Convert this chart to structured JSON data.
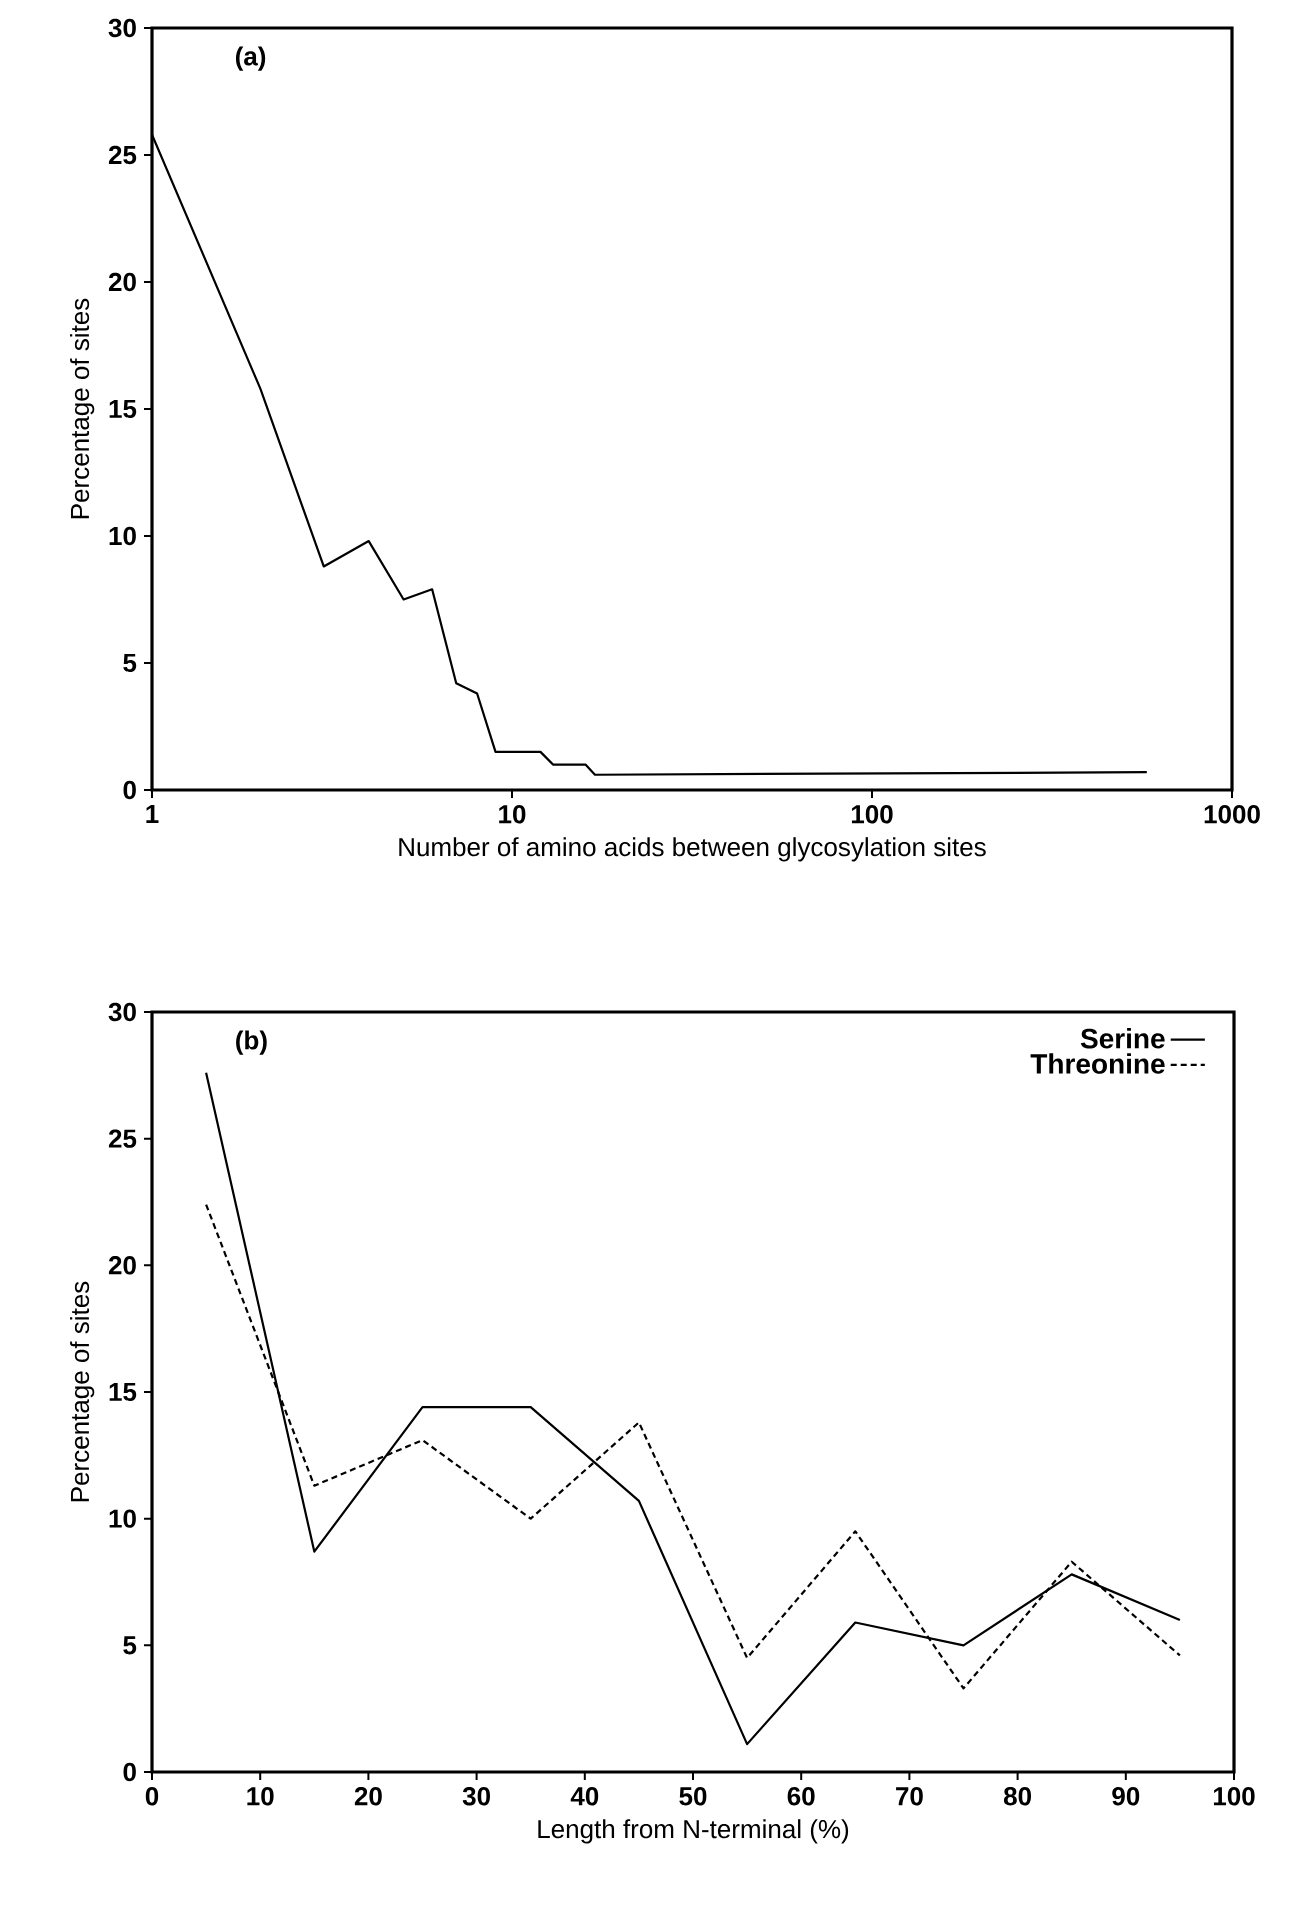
{
  "chart_data": [
    {
      "type": "line",
      "xlabel": "Number of amino acids between glycosylation sites",
      "ylabel": "Percentage of sites",
      "annotations": [
        "(a)"
      ],
      "log": "x",
      "xlim": [
        1,
        1000
      ],
      "xticks": [
        1,
        10,
        100,
        1000
      ],
      "ylim": [
        0,
        30
      ],
      "yticks": [
        0,
        5,
        10,
        15,
        20,
        25,
        30
      ],
      "grid": false,
      "legend": false,
      "series": [
        {
          "color": "#000000",
          "line_style": "solid",
          "x": [
            1,
            2,
            3,
            4,
            5,
            6,
            7,
            8,
            9,
            12,
            13,
            16,
            17,
            580
          ],
          "values": [
            25.8,
            15.8,
            8.8,
            9.8,
            7.5,
            7.9,
            4.2,
            3.8,
            1.5,
            1.5,
            1.0,
            1.0,
            0.6,
            0.7
          ]
        }
      ]
    },
    {
      "type": "line",
      "xlabel": "Length from N-terminal (%)",
      "ylabel": "Percentage of sites",
      "annotations": [
        "(b)"
      ],
      "xlim": [
        0,
        100
      ],
      "xticks": [
        0,
        10,
        20,
        30,
        40,
        50,
        60,
        70,
        80,
        90,
        100
      ],
      "ylim": [
        0,
        30
      ],
      "yticks": [
        0,
        5,
        10,
        15,
        20,
        25,
        30
      ],
      "grid": false,
      "legend": "top right",
      "x": [
        5,
        15,
        25,
        35,
        45,
        55,
        65,
        75,
        85,
        95
      ],
      "series": [
        {
          "name": "Serine",
          "color": "#000000",
          "line_style": "solid",
          "values": [
            27.6,
            8.7,
            14.4,
            14.4,
            10.7,
            1.1,
            5.9,
            5.0,
            7.8,
            6.0
          ]
        },
        {
          "name": "Threonine",
          "color": "#000000",
          "line_style": "dashed",
          "values": [
            22.4,
            11.3,
            13.1,
            10.0,
            13.8,
            4.5,
            9.5,
            3.3,
            8.3,
            4.6
          ]
        }
      ]
    }
  ]
}
